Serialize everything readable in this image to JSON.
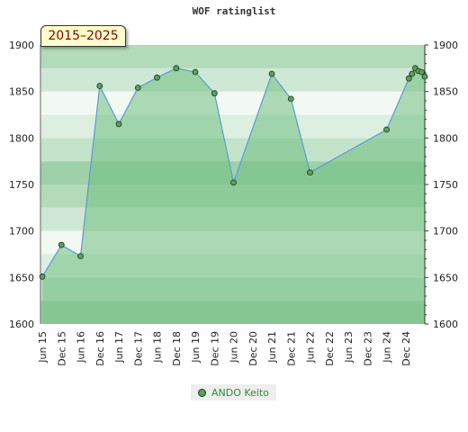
{
  "chart_data": {
    "type": "area",
    "title": "WOF ratinglist",
    "period_badge": "2015–2025",
    "ylim": [
      1600,
      1900
    ],
    "yticks": [
      1600,
      1650,
      1700,
      1750,
      1800,
      1850,
      1900
    ],
    "xlim": [
      "2015-06",
      "2025-06"
    ],
    "xticks": [
      "Jun 15",
      "Dec 15",
      "Jun 16",
      "Dec 16",
      "Jun 17",
      "Dec 17",
      "Jun 18",
      "Dec 18",
      "Jun 19",
      "Dec 19",
      "Jun 20",
      "Dec 20",
      "Jun 21",
      "Dec 21",
      "Jun 22",
      "Dec 22",
      "Jun 23",
      "Dec 23",
      "Jun 24",
      "Dec 24"
    ],
    "series": [
      {
        "name": "ANDO Keito",
        "color": "#5b9bd5",
        "marker_color": "#5c9e5c",
        "points": [
          {
            "x": "2015-06",
            "y": 1651
          },
          {
            "x": "2015-12",
            "y": 1685
          },
          {
            "x": "2016-06",
            "y": 1673
          },
          {
            "x": "2016-12",
            "y": 1856
          },
          {
            "x": "2017-06",
            "y": 1815
          },
          {
            "x": "2017-12",
            "y": 1854
          },
          {
            "x": "2018-06",
            "y": 1865
          },
          {
            "x": "2018-12",
            "y": 1875
          },
          {
            "x": "2019-06",
            "y": 1871
          },
          {
            "x": "2019-12",
            "y": 1848
          },
          {
            "x": "2020-06",
            "y": 1752
          },
          {
            "x": "2021-06",
            "y": 1869
          },
          {
            "x": "2021-12",
            "y": 1842
          },
          {
            "x": "2022-06",
            "y": 1763
          },
          {
            "x": "2024-06",
            "y": 1809
          },
          {
            "x": "2025-01",
            "y": 1864
          },
          {
            "x": "2025-02",
            "y": 1869
          },
          {
            "x": "2025-03",
            "y": 1875
          },
          {
            "x": "2025-04",
            "y": 1872
          },
          {
            "x": "2025-05",
            "y": 1871
          },
          {
            "x": "2025-06",
            "y": 1866
          }
        ]
      }
    ],
    "legend": "bottom-center",
    "band_colors": [
      "#9fd2a8",
      "#eef7f0"
    ],
    "fill_color": "#6fbf80"
  }
}
